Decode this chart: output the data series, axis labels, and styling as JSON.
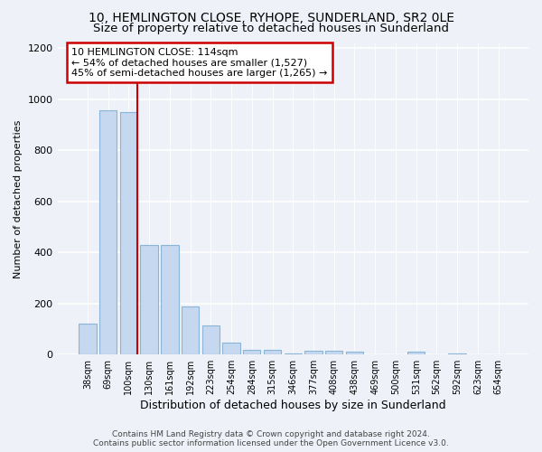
{
  "title1": "10, HEMLINGTON CLOSE, RYHOPE, SUNDERLAND, SR2 0LE",
  "title2": "Size of property relative to detached houses in Sunderland",
  "xlabel": "Distribution of detached houses by size in Sunderland",
  "ylabel": "Number of detached properties",
  "categories": [
    "38sqm",
    "69sqm",
    "100sqm",
    "130sqm",
    "161sqm",
    "192sqm",
    "223sqm",
    "254sqm",
    "284sqm",
    "315sqm",
    "346sqm",
    "377sqm",
    "408sqm",
    "438sqm",
    "469sqm",
    "500sqm",
    "531sqm",
    "562sqm",
    "592sqm",
    "623sqm",
    "654sqm"
  ],
  "values": [
    120,
    955,
    950,
    430,
    430,
    190,
    115,
    45,
    20,
    20,
    5,
    15,
    15,
    10,
    0,
    0,
    10,
    0,
    5,
    0,
    0
  ],
  "bar_color": "#c5d8ef",
  "bar_edge_color": "#8ab4d8",
  "red_line_index": 2,
  "red_line_color": "#cc0000",
  "annotation_text": "10 HEMLINGTON CLOSE: 114sqm\n← 54% of detached houses are smaller (1,527)\n45% of semi-detached houses are larger (1,265) →",
  "annotation_box_color": "#ffffff",
  "annotation_box_edge_color": "#cc0000",
  "ylim": [
    0,
    1220
  ],
  "yticks": [
    0,
    200,
    400,
    600,
    800,
    1000,
    1200
  ],
  "footer1": "Contains HM Land Registry data © Crown copyright and database right 2024.",
  "footer2": "Contains public sector information licensed under the Open Government Licence v3.0.",
  "bg_color": "#eef2f8",
  "plot_bg_color": "#eef2f8",
  "title_fontsize": 10,
  "subtitle_fontsize": 9.5
}
